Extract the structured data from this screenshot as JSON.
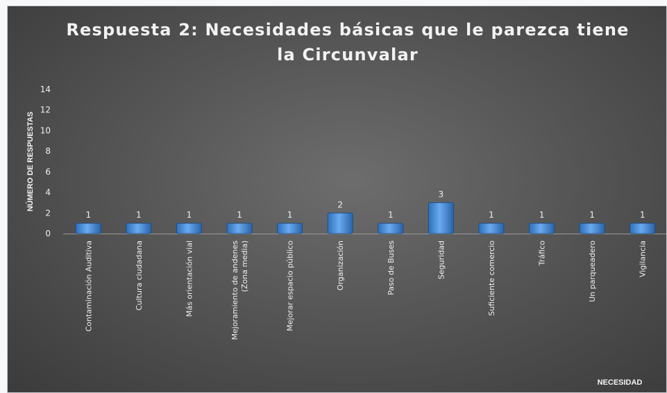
{
  "chart_data": {
    "type": "bar",
    "title": "Respuesta 2: Necesidades básicas que le parezca tiene la Circunvalar",
    "ylabel": "NÚMERO DE RESPUESTAS",
    "xlabel": "NECESIDAD",
    "ylim": [
      0,
      14
    ],
    "yticks": [
      "0",
      "2",
      "4",
      "6",
      "8",
      "10",
      "12",
      "14"
    ],
    "grid": false,
    "legend": "none",
    "bar_color": "#4a90e2",
    "categories": [
      [
        "Contaminación Auditiva"
      ],
      [
        "Cultura ciudadana"
      ],
      [
        "Más orientación vial"
      ],
      [
        "Mejoramiento de andenes",
        "(Zona media)"
      ],
      [
        "Mejorar espacio público"
      ],
      [
        "Organización"
      ],
      [
        "Paso de Buses"
      ],
      [
        "Seguridad"
      ],
      [
        "Suficiente comercio"
      ],
      [
        "Tráfico"
      ],
      [
        "Un parqueadero"
      ],
      [
        "Vigilancia"
      ]
    ],
    "values": [
      1,
      1,
      1,
      1,
      1,
      2,
      1,
      3,
      1,
      1,
      1,
      1
    ]
  }
}
